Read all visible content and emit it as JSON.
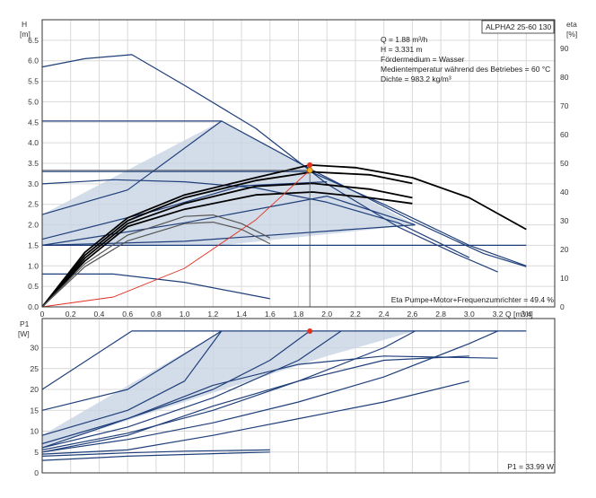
{
  "chart_data": [
    {
      "type": "line",
      "panel": "head-and-efficiency",
      "title": "ALPHA2 25-60 130",
      "y_axis_left": {
        "label": "H",
        "unit": "[m]",
        "range": [
          0,
          7.0
        ],
        "ticks": [
          "0.0",
          "0.5",
          "1.0",
          "1.5",
          "2.0",
          "2.5",
          "3.0",
          "3.5",
          "4.0",
          "4.5",
          "5.0",
          "5.5",
          "6.0",
          "6.5"
        ]
      },
      "y_axis_right": {
        "label": "eta",
        "unit": "[%]",
        "range": [
          0,
          100
        ],
        "ticks": [
          "0",
          "10",
          "20",
          "30",
          "40",
          "50",
          "60",
          "70",
          "80",
          "90"
        ]
      },
      "x_axis": {
        "label": "Q",
        "unit": "[m³/h]",
        "range": [
          0,
          3.6
        ],
        "ticks": [
          "0",
          "0.2",
          "0.4",
          "0.6",
          "0.8",
          "1.0",
          "1.2",
          "1.4",
          "1.6",
          "1.8",
          "2.0",
          "2.2",
          "2.4",
          "2.6",
          "2.8",
          "3.0",
          "3.2",
          "3.4"
        ]
      },
      "info_lines": [
        "Q = 1.88 m³/h",
        "H = 3.331 m",
        "Fördermedium = Wasser",
        "Medientemperatur während des Betriebes = 60 °C",
        "Dichte = 983.2 kg/m³"
      ],
      "footnote": "Eta Pumpe+Motor+Frequenzumrichter = 49.4 %",
      "operating_point": {
        "q": 1.88,
        "h": 3.331,
        "eta": 49.4
      },
      "shaded_region": [
        [
          0,
          1.5
        ],
        [
          0,
          2.25
        ],
        [
          1.26,
          4.53
        ],
        [
          2.62,
          2.0
        ],
        [
          1.26,
          1.5
        ]
      ],
      "series": [
        {
          "style": "head",
          "points": [
            [
              0,
              5.85
            ],
            [
              0.3,
              6.05
            ],
            [
              0.63,
              6.15
            ],
            [
              1.0,
              5.4
            ],
            [
              1.5,
              4.35
            ],
            [
              2.0,
              3.0
            ],
            [
              2.5,
              1.95
            ],
            [
              2.9,
              1.3
            ],
            [
              3.2,
              0.85
            ]
          ]
        },
        {
          "style": "head",
          "points": [
            [
              0,
              4.53
            ],
            [
              1.26,
              4.53
            ],
            [
              1.9,
              3.33
            ],
            [
              2.6,
              2.1
            ],
            [
              3.1,
              1.3
            ],
            [
              3.4,
              0.98
            ]
          ]
        },
        {
          "style": "head",
          "points": [
            [
              0,
              3.3
            ],
            [
              1.88,
              3.3
            ],
            [
              2.4,
              2.5
            ],
            [
              3.0,
              1.5
            ],
            [
              3.4,
              1.0
            ]
          ]
        },
        {
          "style": "head",
          "points": [
            [
              0,
              3.0
            ],
            [
              0.5,
              3.1
            ],
            [
              1.0,
              3.05
            ],
            [
              1.5,
              2.9
            ],
            [
              2.0,
              2.55
            ],
            [
              2.5,
              2.05
            ],
            [
              3.0,
              1.2
            ]
          ]
        },
        {
          "style": "head",
          "points": [
            [
              0,
              2.25
            ],
            [
              0.6,
              2.85
            ],
            [
              1.26,
              4.53
            ]
          ]
        },
        {
          "style": "head",
          "points": [
            [
              0,
              1.65
            ],
            [
              0.8,
              2.35
            ],
            [
              1.4,
              2.95
            ],
            [
              2.0,
              3.05
            ]
          ]
        },
        {
          "style": "head",
          "points": [
            [
              0,
              1.5
            ],
            [
              1.0,
              2.05
            ],
            [
              2.0,
              2.7
            ],
            [
              2.62,
              2.0
            ]
          ]
        },
        {
          "style": "head",
          "points": [
            [
              0,
              1.5
            ],
            [
              2.62,
              1.5
            ],
            [
              3.4,
              1.5
            ]
          ]
        },
        {
          "style": "head",
          "points": [
            [
              0,
              1.5
            ],
            [
              1.0,
              1.6
            ],
            [
              2.62,
              2.0
            ]
          ]
        },
        {
          "style": "head",
          "points": [
            [
              0,
              0.8
            ],
            [
              0.5,
              0.8
            ],
            [
              1.0,
              0.6
            ],
            [
              1.6,
              0.2
            ]
          ]
        },
        {
          "style": "efficiency",
          "points": [
            [
              0,
              0
            ],
            [
              0.3,
              19
            ],
            [
              0.6,
              31
            ],
            [
              1.0,
              39
            ],
            [
              1.5,
              45
            ],
            [
              1.88,
              49.4
            ],
            [
              2.2,
              48.5
            ],
            [
              2.6,
              45
            ],
            [
              3.0,
              38
            ],
            [
              3.4,
              27
            ]
          ]
        },
        {
          "style": "efficiency",
          "points": [
            [
              0,
              0
            ],
            [
              0.3,
              18
            ],
            [
              0.6,
              30
            ],
            [
              1.0,
              38
            ],
            [
              1.5,
              44
            ],
            [
              1.9,
              47
            ],
            [
              2.3,
              46
            ],
            [
              2.6,
              43
            ]
          ]
        },
        {
          "style": "efficiency",
          "points": [
            [
              0,
              0
            ],
            [
              0.3,
              17
            ],
            [
              0.6,
              29
            ],
            [
              1.0,
              36
            ],
            [
              1.5,
              42
            ],
            [
              1.9,
              43
            ],
            [
              2.3,
              41
            ],
            [
              2.6,
              38
            ]
          ]
        },
        {
          "style": "efficiency",
          "points": [
            [
              0,
              0
            ],
            [
              0.3,
              16
            ],
            [
              0.6,
              28
            ],
            [
              1.0,
              34
            ],
            [
              1.5,
              39
            ],
            [
              1.9,
              40
            ],
            [
              2.3,
              38
            ],
            [
              2.6,
              36
            ]
          ]
        },
        {
          "style": "efficiency-grey",
          "points": [
            [
              0,
              0
            ],
            [
              0.3,
              15
            ],
            [
              0.6,
              25
            ],
            [
              1.0,
              31.5
            ],
            [
              1.2,
              32
            ],
            [
              1.4,
              29
            ],
            [
              1.6,
              24
            ]
          ]
        },
        {
          "style": "efficiency-grey",
          "points": [
            [
              0,
              0
            ],
            [
              0.3,
              14
            ],
            [
              0.6,
              23
            ],
            [
              1.0,
              29
            ],
            [
              1.2,
              29.5
            ],
            [
              1.4,
              27
            ],
            [
              1.6,
              22
            ]
          ]
        },
        {
          "style": "system",
          "points": [
            [
              0,
              0
            ],
            [
              0.5,
              0.24
            ],
            [
              1.0,
              0.94
            ],
            [
              1.5,
              2.12
            ],
            [
              1.88,
              3.331
            ]
          ]
        }
      ],
      "colors": {
        "head": "#1f3f7a",
        "efficiency": "#000000",
        "efficiency-grey": "#555555",
        "system": "#e03020",
        "region": "#c8d3e3",
        "point": "#e63020",
        "marker": "#f0b020"
      }
    },
    {
      "type": "line",
      "panel": "power",
      "y_axis": {
        "label": "P1",
        "unit": "[W]",
        "range": [
          0,
          37
        ],
        "ticks": [
          "0",
          "5",
          "10",
          "15",
          "20",
          "25",
          "30"
        ]
      },
      "x_axis": {
        "range": [
          0,
          3.6
        ]
      },
      "footnote": "P1 = 33.99 W",
      "operating_point": {
        "q": 1.88,
        "p1": 33.99
      },
      "shaded_region": [
        [
          0,
          6
        ],
        [
          0,
          9
        ],
        [
          1.26,
          34
        ],
        [
          2.62,
          34
        ],
        [
          2.0,
          28
        ]
      ],
      "series": [
        {
          "points": [
            [
              0,
              20
            ],
            [
              0.63,
              34
            ],
            [
              3.4,
              34
            ]
          ]
        },
        {
          "points": [
            [
              0,
              15
            ],
            [
              0.6,
              20
            ],
            [
              1.26,
              34
            ]
          ]
        },
        {
          "points": [
            [
              0,
              9
            ],
            [
              0.6,
              15
            ],
            [
              1.0,
              22
            ],
            [
              1.26,
              34
            ]
          ]
        },
        {
          "points": [
            [
              0,
              7
            ],
            [
              0.6,
              13
            ],
            [
              1.2,
              20
            ],
            [
              1.6,
              27
            ],
            [
              1.88,
              34
            ]
          ]
        },
        {
          "points": [
            [
              0,
              6
            ],
            [
              0.6,
              11
            ],
            [
              1.2,
              18
            ],
            [
              1.8,
              27
            ],
            [
              2.1,
              34
            ]
          ]
        },
        {
          "points": [
            [
              0,
              5.5
            ],
            [
              0.6,
              9.5
            ],
            [
              1.2,
              15
            ],
            [
              1.8,
              22
            ],
            [
              2.4,
              30
            ],
            [
              2.62,
              34
            ]
          ]
        },
        {
          "points": [
            [
              0,
              5
            ],
            [
              0.6,
              8
            ],
            [
              1.2,
              12
            ],
            [
              1.8,
              17
            ],
            [
              2.4,
              23
            ],
            [
              3.0,
              31
            ],
            [
              3.2,
              34
            ]
          ]
        },
        {
          "points": [
            [
              0,
              5
            ],
            [
              0.6,
              9
            ],
            [
              1.2,
              16
            ],
            [
              1.8,
              22
            ],
            [
              2.4,
              27
            ],
            [
              3.0,
              28
            ]
          ]
        },
        {
          "points": [
            [
              0,
              6
            ],
            [
              0.6,
              13
            ],
            [
              1.2,
              21
            ],
            [
              1.8,
              26
            ],
            [
              2.4,
              28
            ],
            [
              3.2,
              27.5
            ]
          ]
        },
        {
          "points": [
            [
              0,
              4.5
            ],
            [
              0.6,
              5.5
            ],
            [
              1.2,
              9
            ],
            [
              1.8,
              13
            ],
            [
              2.4,
              17
            ],
            [
              3.0,
              22
            ]
          ]
        },
        {
          "points": [
            [
              0,
              4
            ],
            [
              0.6,
              4.8
            ],
            [
              1.0,
              5.2
            ],
            [
              1.6,
              5.5
            ]
          ]
        },
        {
          "points": [
            [
              0,
              3
            ],
            [
              0.6,
              4
            ],
            [
              1.2,
              4.6
            ],
            [
              1.6,
              5
            ]
          ]
        }
      ],
      "colors": {
        "line": "#1f3f7a",
        "region": "#c8d3e3",
        "point": "#e63020"
      }
    }
  ]
}
